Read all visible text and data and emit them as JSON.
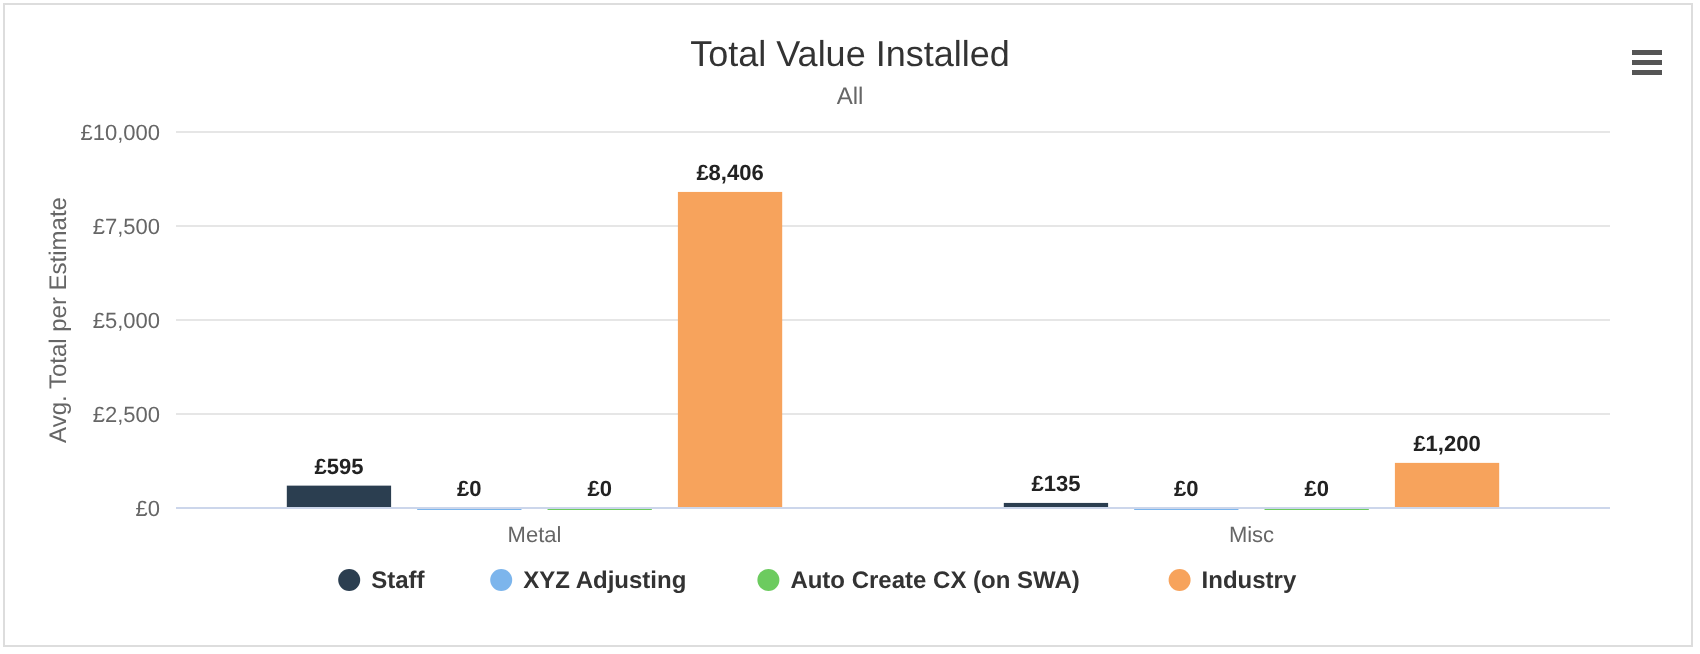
{
  "chart_data": {
    "type": "bar",
    "title": "Total Value Installed",
    "subtitle": "All",
    "ylabel": "Avg. Total per Estimate",
    "categories": [
      "Metal",
      "Misc"
    ],
    "series": [
      {
        "name": "Staff",
        "color": "#2b3e50",
        "values": [
          595,
          135
        ],
        "value_labels": [
          "£595",
          "£135"
        ]
      },
      {
        "name": "XYZ Adjusting",
        "color": "#7cb5ec",
        "values": [
          0,
          0
        ],
        "value_labels": [
          "£0",
          "£0"
        ]
      },
      {
        "name": "Auto Create CX (on SWA)",
        "color": "#6ccb5f",
        "values": [
          0,
          0
        ],
        "value_labels": [
          "£0",
          "£0"
        ]
      },
      {
        "name": "Industry",
        "color": "#f7a35c",
        "values": [
          8406,
          1200
        ],
        "value_labels": [
          "£8,406",
          "£1,200"
        ]
      }
    ],
    "ylim": [
      0,
      10000
    ],
    "yticks": [
      {
        "value": 0,
        "label": "£0"
      },
      {
        "value": 2500,
        "label": "£2,500"
      },
      {
        "value": 5000,
        "label": "£5,000"
      },
      {
        "value": 7500,
        "label": "£7,500"
      },
      {
        "value": 10000,
        "label": "£10,000"
      }
    ],
    "grid": "y",
    "legend": "bottom"
  }
}
